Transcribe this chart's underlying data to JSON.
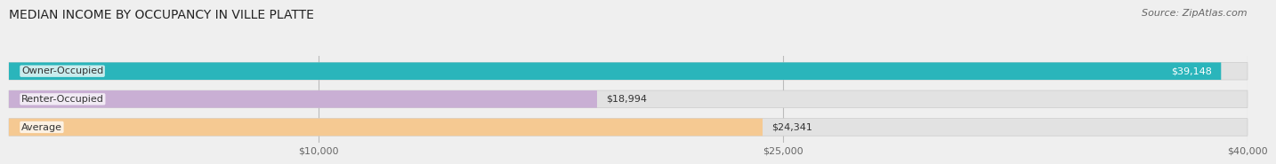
{
  "title": "MEDIAN INCOME BY OCCUPANCY IN VILLE PLATTE",
  "source": "Source: ZipAtlas.com",
  "categories": [
    "Owner-Occupied",
    "Renter-Occupied",
    "Average"
  ],
  "values": [
    39148,
    18994,
    24341
  ],
  "bar_colors": [
    "#2ab5bb",
    "#c9afd4",
    "#f5c992"
  ],
  "value_labels": [
    "$39,148",
    "$18,994",
    "$24,341"
  ],
  "xlim": [
    0,
    40000
  ],
  "xticks": [
    10000,
    25000,
    40000
  ],
  "xtick_labels": [
    "$10,000",
    "$25,000",
    "$40,000"
  ],
  "background_color": "#efefef",
  "bar_bg_color": "#e2e2e2",
  "title_fontsize": 10,
  "source_fontsize": 8,
  "label_fontsize": 8,
  "value_fontsize": 8
}
